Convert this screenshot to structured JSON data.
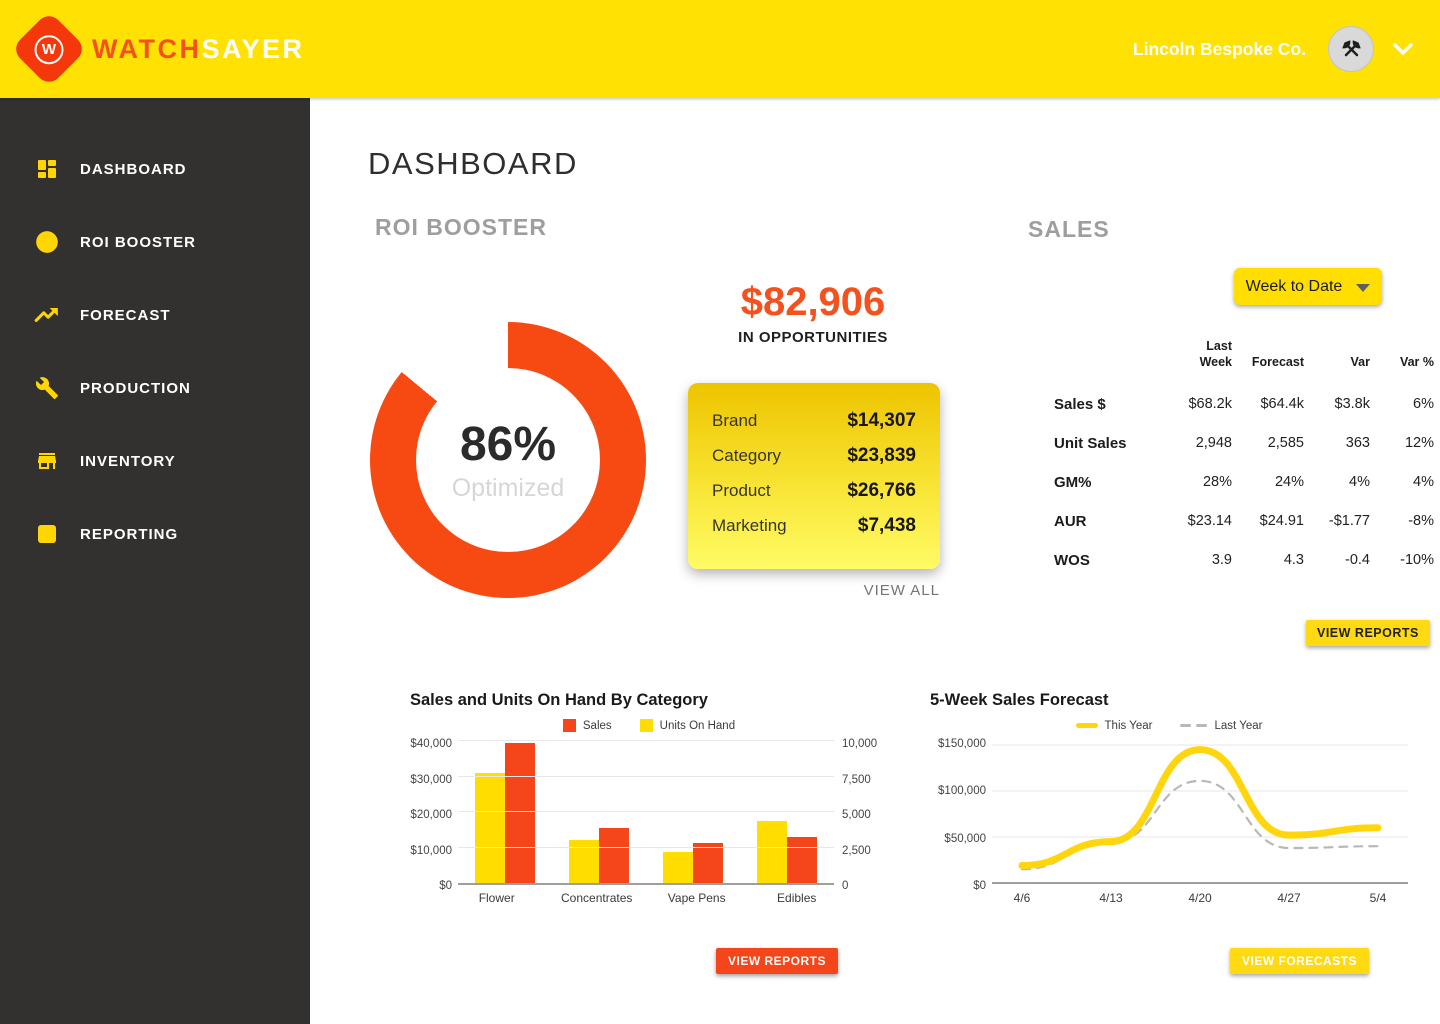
{
  "colors": {
    "topbar_yellow": "#FFE103",
    "sidebar_bg": "#333130",
    "accent_red": "#F4461A",
    "donut_red": "#F74A12",
    "accent_yellow": "#FFDE00",
    "bar_yellow": "#FFDD00",
    "line_yellow": "#FFD60E",
    "line_gray": "#B8B8B8",
    "heading_gray": "#9E9E9E"
  },
  "topbar": {
    "logo_letter": "W",
    "brand_primary": "WATCH",
    "brand_secondary": "SAYER",
    "company": "Lincoln Bespoke Co."
  },
  "sidebar": {
    "items": [
      {
        "label": "DASHBOARD",
        "icon": "dashboard-grid-icon"
      },
      {
        "label": "ROI BOOSTER",
        "icon": "circle-icon"
      },
      {
        "label": "FORECAST",
        "icon": "trending-up-icon"
      },
      {
        "label": "PRODUCTION",
        "icon": "wrench-icon"
      },
      {
        "label": "INVENTORY",
        "icon": "store-icon"
      },
      {
        "label": "REPORTING",
        "icon": "square-icon"
      }
    ]
  },
  "page": {
    "title": "DASHBOARD"
  },
  "roi": {
    "heading": "ROI BOOSTER",
    "donut": {
      "value": 86,
      "percent_label": "86%",
      "sub_label": "Optimized"
    },
    "opportunities": {
      "amount": "$82,906",
      "caption": "IN OPPORTUNITIES"
    },
    "breakdown": [
      {
        "label": "Brand",
        "value": "$14,307"
      },
      {
        "label": "Category",
        "value": "$23,839"
      },
      {
        "label": "Product",
        "value": "$26,766"
      },
      {
        "label": "Marketing",
        "value": "$7,438"
      }
    ],
    "view_all_label": "VIEW ALL"
  },
  "sales": {
    "heading": "SALES",
    "filter_label": "Week to Date",
    "table": {
      "columns": [
        "Last Week",
        "Forecast",
        "Var",
        "Var %"
      ],
      "rows": [
        {
          "label": "Sales $",
          "values": [
            "$68.2k",
            "$64.4k",
            "$3.8k",
            "6%"
          ]
        },
        {
          "label": "Unit Sales",
          "values": [
            "2,948",
            "2,585",
            "363",
            "12%"
          ]
        },
        {
          "label": "GM%",
          "values": [
            "28%",
            "24%",
            "4%",
            "4%"
          ]
        },
        {
          "label": "AUR",
          "values": [
            "$23.14",
            "$24.91",
            "-$1.77",
            "-8%"
          ]
        },
        {
          "label": "WOS",
          "values": [
            "3.9",
            "4.3",
            "-0.4",
            "-10%"
          ]
        }
      ]
    },
    "view_reports_label": "VIEW REPORTS"
  },
  "chart_data": [
    {
      "type": "bar",
      "title": "Sales and Units On Hand By Category",
      "categories": [
        "Flower",
        "Concentrates",
        "Vape Pens",
        "Edibles"
      ],
      "series": [
        {
          "name": "Sales",
          "color": "#F4461A",
          "axis": "left",
          "axis_max": 40000,
          "values": [
            39500,
            15500,
            11300,
            13000
          ]
        },
        {
          "name": "Units On Hand",
          "color": "#FFDD00",
          "axis": "right",
          "axis_max": 10000,
          "values": [
            7750,
            3050,
            2150,
            4350
          ]
        }
      ],
      "bar_display_order": [
        1,
        0
      ],
      "left_axis_ticks": [
        "$0",
        "$10,000",
        "$20,000",
        "$30,000",
        "$40,000"
      ],
      "right_axis_ticks": [
        "0",
        "2,500",
        "5,000",
        "7,500",
        "10,000"
      ],
      "left_ylim": [
        0,
        40000
      ],
      "right_ylim": [
        0,
        10000
      ],
      "grid": true,
      "legend_position": "top",
      "button_label": "VIEW REPORTS"
    },
    {
      "type": "line",
      "title": "5-Week Sales Forecast",
      "x": [
        "4/6",
        "4/13",
        "4/20",
        "4/27",
        "5/4"
      ],
      "series": [
        {
          "name": "This Year",
          "color": "#FFD60E",
          "style": "solid",
          "values": [
            19000,
            45000,
            145000,
            52000,
            60000
          ]
        },
        {
          "name": "Last Year",
          "color": "#B8B8B8",
          "style": "dashed",
          "values": [
            15000,
            44000,
            111000,
            38000,
            40000
          ]
        }
      ],
      "y_axis_ticks": [
        "$0",
        "$50,000",
        "$100,000",
        "$150,000"
      ],
      "ylim": [
        0,
        150000
      ],
      "grid": true,
      "legend_position": "top",
      "button_label": "VIEW FORECASTS"
    }
  ]
}
